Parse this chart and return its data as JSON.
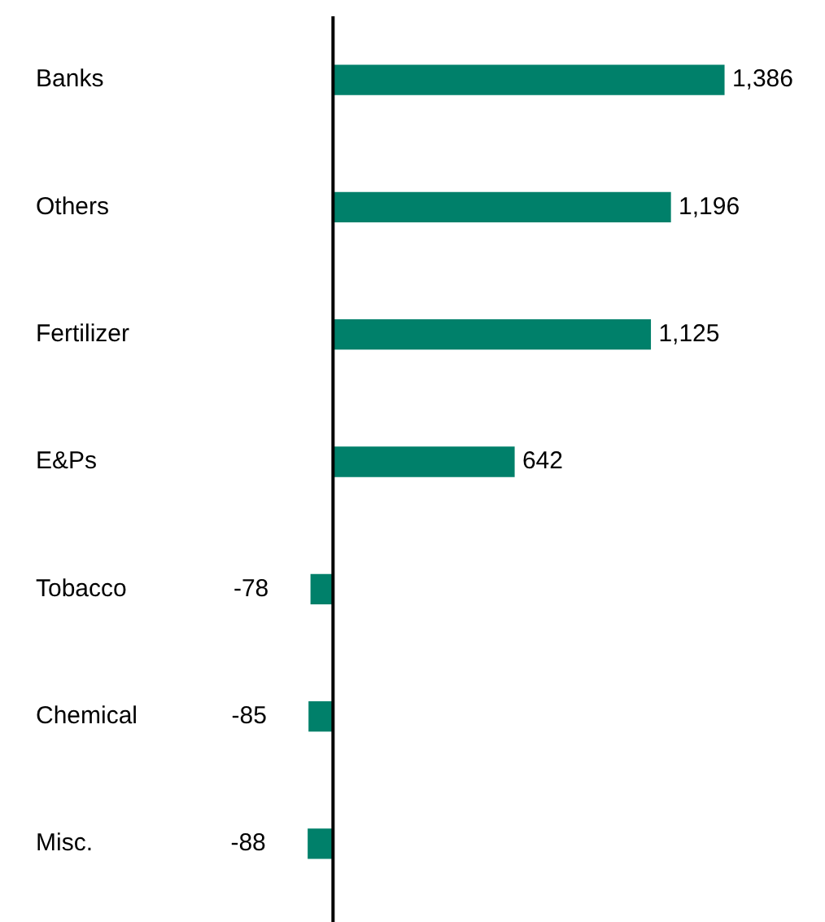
{
  "chart_data": {
    "type": "bar",
    "orientation": "horizontal",
    "categories": [
      "Banks",
      "Others",
      "Fertilizer",
      "E&Ps",
      "Tobacco",
      "Chemical",
      "Misc."
    ],
    "values": [
      1386,
      1196,
      1125,
      642,
      -78,
      -85,
      -88
    ],
    "color": "#00806a",
    "data_labels": true,
    "value_labels": [
      "1,386",
      "1,196",
      "1,125",
      "642",
      "-78",
      "-85",
      "-88"
    ],
    "grid": false,
    "legend": false
  }
}
